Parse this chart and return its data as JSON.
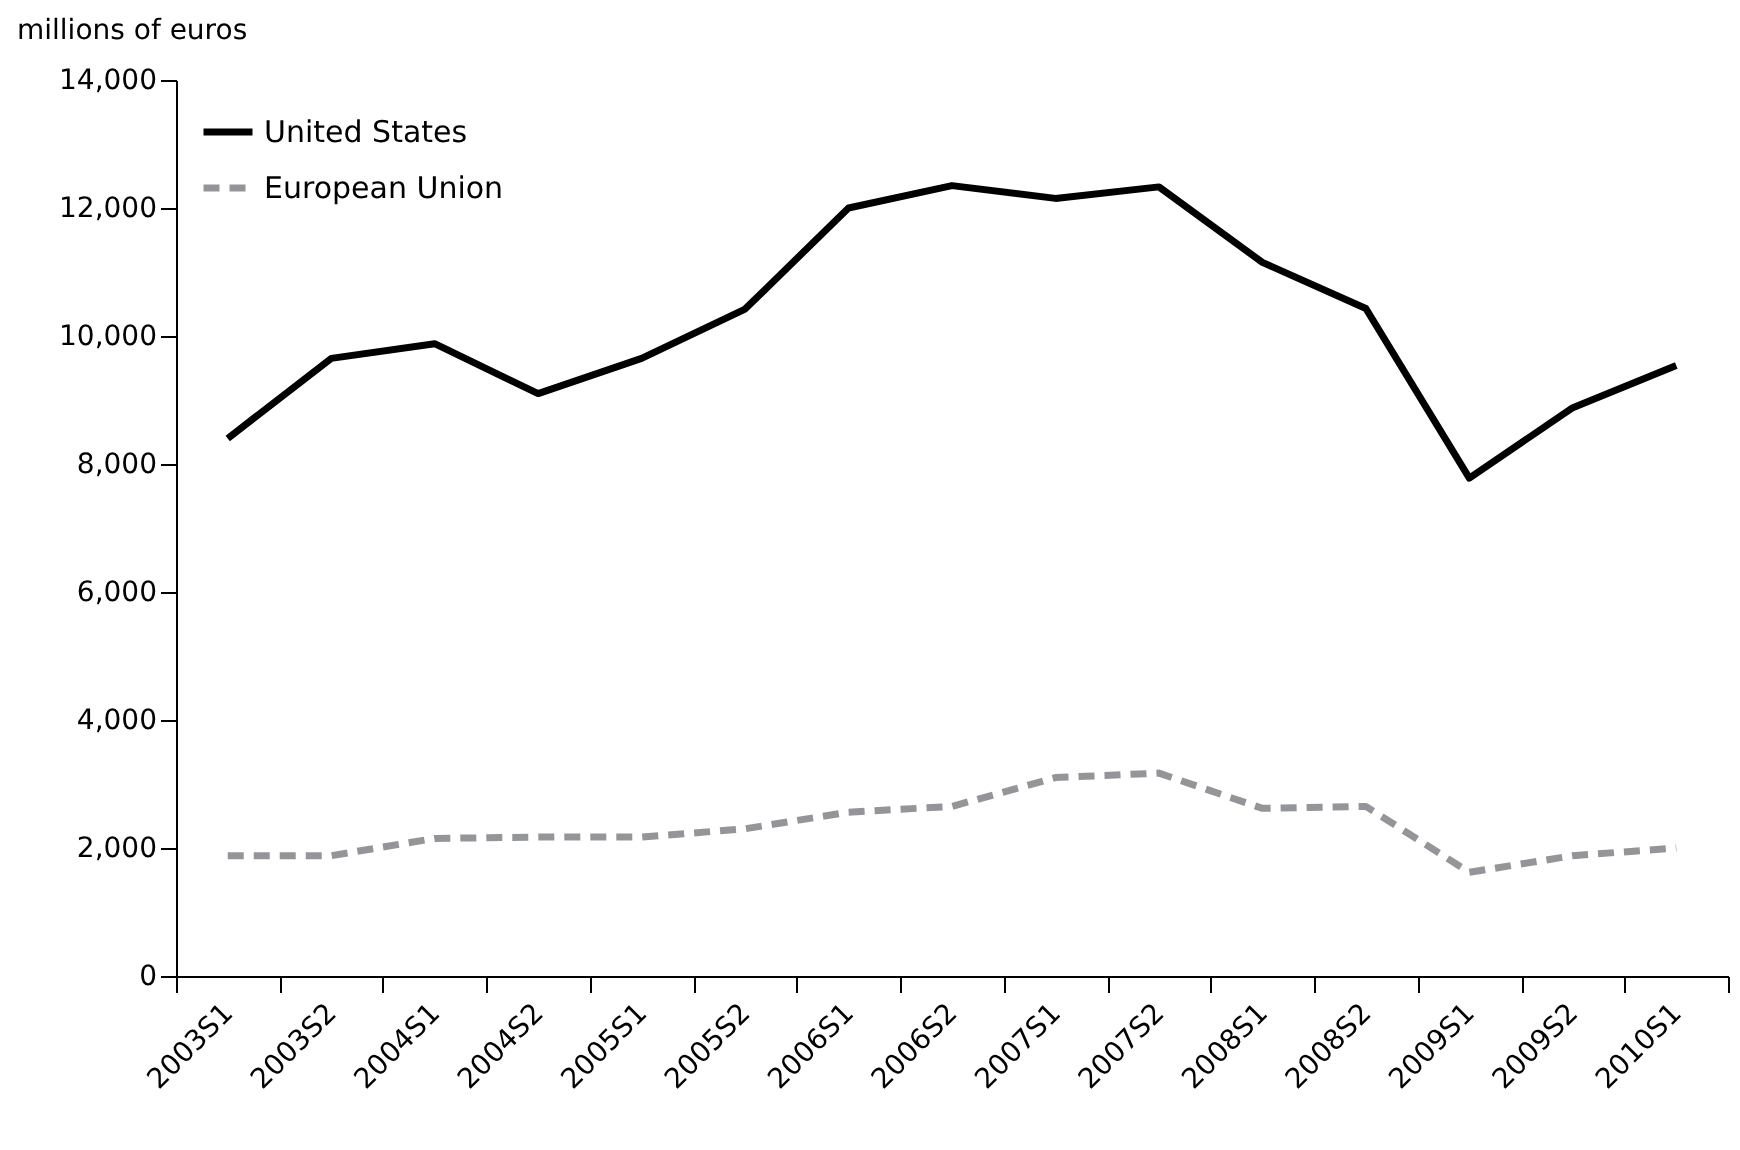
{
  "chart_data": {
    "type": "line",
    "ylabel": "millions of euros",
    "categories": [
      "2003S1",
      "2003S2",
      "2004S1",
      "2004S2",
      "2005S1",
      "2005S2",
      "2006S1",
      "2006S2",
      "2007S1",
      "2007S2",
      "2008S1",
      "2008S2",
      "2009S1",
      "2009S2",
      "2010S1"
    ],
    "series": [
      {
        "name": "United States",
        "color": "#000000",
        "line_style": "solid",
        "values": [
          8400,
          9650,
          9880,
          9100,
          9650,
          10420,
          12000,
          12350,
          12150,
          12330,
          11150,
          10430,
          7780,
          8880,
          9540
        ]
      },
      {
        "name": "European Union",
        "color": "#939598",
        "line_style": "dashed",
        "values": [
          1880,
          1880,
          2150,
          2170,
          2170,
          2300,
          2560,
          2650,
          3100,
          3170,
          2620,
          2650,
          1620,
          1880,
          2000
        ]
      }
    ],
    "ylim": [
      0,
      14000
    ],
    "yticks": [
      0,
      {
        "value": 2000,
        "label": "2,000"
      },
      {
        "value": 4000,
        "label": "4,000"
      },
      {
        "value": 6000,
        "label": "6,000"
      },
      {
        "value": 8000,
        "label": "8,000"
      },
      {
        "value": 10000,
        "label": "10,000"
      },
      {
        "value": 12000,
        "label": "12,000"
      },
      {
        "value": 14000,
        "label": "14,000"
      }
    ],
    "grid": false,
    "legend": "top left"
  }
}
